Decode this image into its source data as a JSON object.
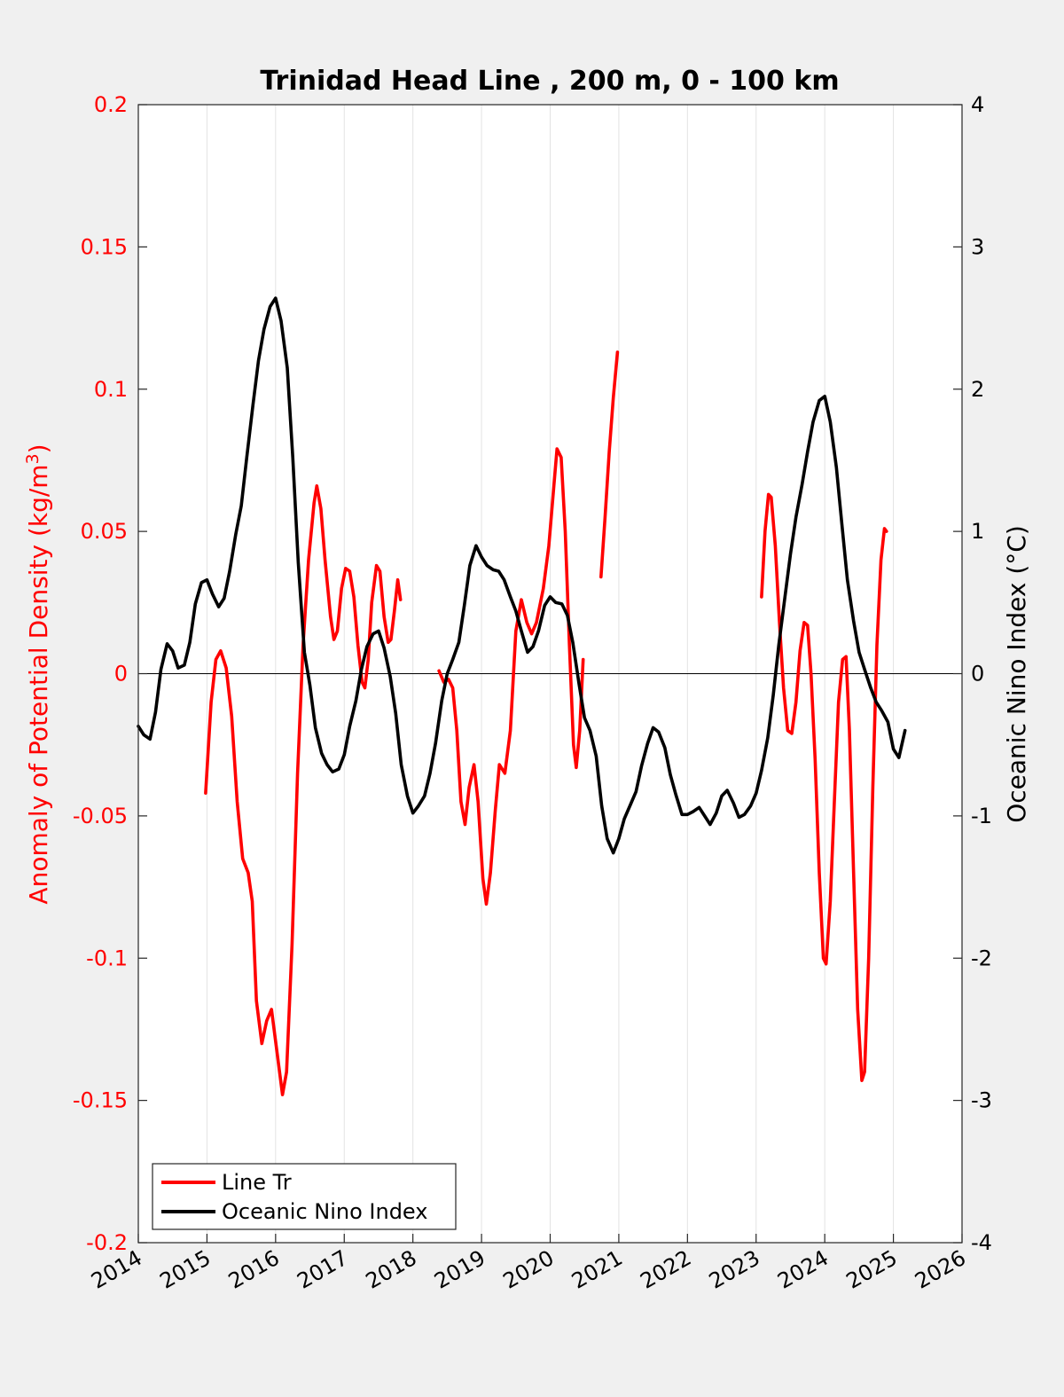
{
  "chart_data": {
    "type": "line",
    "title": "Trinidad Head Line , 200 m, 0 - 100 km",
    "ylabel_left": "Anomaly of Potential Density (kg/m",
    "ylabel_left_sup": "3",
    "ylabel_left_close": ")",
    "ylabel_right": "Oceanic Nino Index (°C)",
    "xlim": [
      2014,
      2026
    ],
    "ylim_left": [
      -0.2,
      0.2
    ],
    "ylim_right": [
      -4,
      4
    ],
    "x_ticks": [
      2014,
      2015,
      2016,
      2017,
      2018,
      2019,
      2020,
      2021,
      2022,
      2023,
      2024,
      2025,
      2026
    ],
    "x_tick_labels": [
      "2014",
      "2015",
      "2016",
      "2017",
      "2018",
      "2019",
      "2020",
      "2021",
      "2022",
      "2023",
      "2024",
      "2025",
      "2026"
    ],
    "y_left_ticks": [
      -0.2,
      -0.15,
      -0.1,
      -0.05,
      0,
      0.05,
      0.1,
      0.15,
      0.2
    ],
    "y_left_tick_labels": [
      "-0.2",
      "-0.15",
      "-0.1",
      "-0.05",
      "0",
      "0.05",
      "0.1",
      "0.15",
      "0.2"
    ],
    "y_right_ticks": [
      -4,
      -3,
      -2,
      -1,
      0,
      1,
      2,
      3,
      4
    ],
    "y_right_tick_labels": [
      "-4",
      "-3",
      "-2",
      "-1",
      "0",
      "1",
      "2",
      "3",
      "4"
    ],
    "grid": "vertical",
    "legend_placement": "bottom-left",
    "colors": {
      "line_tr": "#ff0000",
      "oni": "#000000",
      "axis_left": "#ff0000",
      "axis_right": "#000000",
      "background": "#f0f0f0",
      "plot_bg": "#ffffff"
    },
    "series": [
      {
        "name": "Line Tr",
        "axis": "left",
        "segments": [
          [
            [
              2014.98,
              -0.042
            ],
            [
              2015.06,
              -0.01
            ],
            [
              2015.13,
              0.005
            ],
            [
              2015.2,
              0.008
            ],
            [
              2015.28,
              0.002
            ],
            [
              2015.36,
              -0.015
            ],
            [
              2015.44,
              -0.045
            ],
            [
              2015.52,
              -0.065
            ],
            [
              2015.6,
              -0.07
            ],
            [
              2015.66,
              -0.08
            ],
            [
              2015.72,
              -0.115
            ],
            [
              2015.8,
              -0.13
            ],
            [
              2015.87,
              -0.122
            ],
            [
              2015.94,
              -0.118
            ],
            [
              2016.02,
              -0.133
            ],
            [
              2016.1,
              -0.148
            ],
            [
              2016.16,
              -0.14
            ],
            [
              2016.24,
              -0.095
            ],
            [
              2016.32,
              -0.035
            ],
            [
              2016.4,
              0.01
            ],
            [
              2016.48,
              0.04
            ],
            [
              2016.56,
              0.06
            ],
            [
              2016.6,
              0.066
            ],
            [
              2016.66,
              0.058
            ],
            [
              2016.72,
              0.04
            ],
            [
              2016.8,
              0.02
            ],
            [
              2016.85,
              0.012
            ],
            [
              2016.9,
              0.015
            ],
            [
              2016.96,
              0.03
            ],
            [
              2017.02,
              0.037
            ],
            [
              2017.08,
              0.036
            ],
            [
              2017.14,
              0.027
            ],
            [
              2017.2,
              0.01
            ],
            [
              2017.26,
              -0.003
            ],
            [
              2017.3,
              -0.005
            ],
            [
              2017.35,
              0.005
            ],
            [
              2017.4,
              0.025
            ],
            [
              2017.47,
              0.038
            ],
            [
              2017.52,
              0.036
            ],
            [
              2017.58,
              0.02
            ],
            [
              2017.64,
              0.011
            ],
            [
              2017.68,
              0.012
            ],
            [
              2017.73,
              0.022
            ],
            [
              2017.78,
              0.033
            ],
            [
              2017.82,
              0.026
            ]
          ],
          [
            [
              2018.38,
              0.001
            ],
            [
              2018.45,
              -0.003
            ],
            [
              2018.52,
              -0.002
            ],
            [
              2018.58,
              -0.005
            ],
            [
              2018.64,
              -0.02
            ],
            [
              2018.7,
              -0.045
            ],
            [
              2018.76,
              -0.053
            ],
            [
              2018.82,
              -0.04
            ],
            [
              2018.89,
              -0.032
            ],
            [
              2018.95,
              -0.045
            ],
            [
              2019.02,
              -0.072
            ],
            [
              2019.07,
              -0.081
            ],
            [
              2019.13,
              -0.07
            ],
            [
              2019.2,
              -0.048
            ],
            [
              2019.26,
              -0.032
            ],
            [
              2019.34,
              -0.035
            ],
            [
              2019.42,
              -0.02
            ],
            [
              2019.5,
              0.015
            ],
            [
              2019.58,
              0.026
            ],
            [
              2019.66,
              0.018
            ],
            [
              2019.73,
              0.014
            ],
            [
              2019.8,
              0.018
            ],
            [
              2019.9,
              0.03
            ],
            [
              2019.98,
              0.045
            ],
            [
              2020.05,
              0.065
            ],
            [
              2020.1,
              0.079
            ],
            [
              2020.16,
              0.076
            ],
            [
              2020.22,
              0.05
            ],
            [
              2020.28,
              0.01
            ],
            [
              2020.34,
              -0.025
            ],
            [
              2020.38,
              -0.033
            ],
            [
              2020.43,
              -0.02
            ],
            [
              2020.48,
              0.005
            ]
          ],
          [
            [
              2020.74,
              0.034
            ],
            [
              2020.8,
              0.055
            ],
            [
              2020.86,
              0.078
            ],
            [
              2020.92,
              0.097
            ],
            [
              2020.98,
              0.113
            ]
          ],
          [
            [
              2023.08,
              0.027
            ],
            [
              2023.13,
              0.05
            ],
            [
              2023.18,
              0.063
            ],
            [
              2023.22,
              0.062
            ],
            [
              2023.28,
              0.045
            ],
            [
              2023.34,
              0.018
            ],
            [
              2023.4,
              -0.005
            ],
            [
              2023.46,
              -0.02
            ],
            [
              2023.52,
              -0.021
            ],
            [
              2023.58,
              -0.01
            ],
            [
              2023.64,
              0.008
            ],
            [
              2023.7,
              0.018
            ],
            [
              2023.75,
              0.017
            ],
            [
              2023.8,
              0.0
            ],
            [
              2023.86,
              -0.03
            ],
            [
              2023.92,
              -0.07
            ],
            [
              2023.98,
              -0.1
            ],
            [
              2024.02,
              -0.102
            ],
            [
              2024.08,
              -0.08
            ],
            [
              2024.14,
              -0.045
            ],
            [
              2024.2,
              -0.01
            ],
            [
              2024.26,
              0.005
            ],
            [
              2024.31,
              0.006
            ],
            [
              2024.36,
              -0.02
            ],
            [
              2024.42,
              -0.07
            ],
            [
              2024.48,
              -0.118
            ],
            [
              2024.54,
              -0.143
            ],
            [
              2024.58,
              -0.14
            ],
            [
              2024.64,
              -0.1
            ],
            [
              2024.7,
              -0.04
            ],
            [
              2024.76,
              0.01
            ],
            [
              2024.82,
              0.04
            ],
            [
              2024.87,
              0.051
            ],
            [
              2024.9,
              0.05
            ]
          ]
        ]
      },
      {
        "name": "Oceanic Nino Index",
        "axis": "right",
        "segments": [
          [
            [
              2014.0,
              -0.37
            ],
            [
              2014.08,
              -0.43
            ],
            [
              2014.17,
              -0.46
            ],
            [
              2014.25,
              -0.27
            ],
            [
              2014.33,
              0.03
            ],
            [
              2014.42,
              0.21
            ],
            [
              2014.5,
              0.16
            ],
            [
              2014.58,
              0.04
            ],
            [
              2014.67,
              0.06
            ],
            [
              2014.75,
              0.22
            ],
            [
              2014.83,
              0.49
            ],
            [
              2014.92,
              0.64
            ],
            [
              2015.0,
              0.66
            ],
            [
              2015.08,
              0.56
            ],
            [
              2015.17,
              0.47
            ],
            [
              2015.25,
              0.53
            ],
            [
              2015.33,
              0.72
            ],
            [
              2015.42,
              0.98
            ],
            [
              2015.5,
              1.18
            ],
            [
              2015.58,
              1.52
            ],
            [
              2015.67,
              1.89
            ],
            [
              2015.75,
              2.2
            ],
            [
              2015.83,
              2.42
            ],
            [
              2015.92,
              2.58
            ],
            [
              2016.0,
              2.64
            ],
            [
              2016.08,
              2.48
            ],
            [
              2016.17,
              2.15
            ],
            [
              2016.25,
              1.52
            ],
            [
              2016.33,
              0.78
            ],
            [
              2016.42,
              0.15
            ],
            [
              2016.5,
              -0.08
            ],
            [
              2016.58,
              -0.38
            ],
            [
              2016.67,
              -0.56
            ],
            [
              2016.75,
              -0.64
            ],
            [
              2016.83,
              -0.69
            ],
            [
              2016.92,
              -0.67
            ],
            [
              2017.0,
              -0.57
            ],
            [
              2017.08,
              -0.37
            ],
            [
              2017.17,
              -0.19
            ],
            [
              2017.25,
              0.03
            ],
            [
              2017.33,
              0.19
            ],
            [
              2017.42,
              0.28
            ],
            [
              2017.5,
              0.3
            ],
            [
              2017.58,
              0.18
            ],
            [
              2017.67,
              -0.02
            ],
            [
              2017.75,
              -0.28
            ],
            [
              2017.83,
              -0.64
            ],
            [
              2017.92,
              -0.86
            ],
            [
              2018.0,
              -0.98
            ],
            [
              2018.08,
              -0.93
            ],
            [
              2018.17,
              -0.86
            ],
            [
              2018.25,
              -0.7
            ],
            [
              2018.33,
              -0.49
            ],
            [
              2018.42,
              -0.19
            ],
            [
              2018.5,
              0.0
            ],
            [
              2018.58,
              0.1
            ],
            [
              2018.67,
              0.22
            ],
            [
              2018.75,
              0.48
            ],
            [
              2018.83,
              0.76
            ],
            [
              2018.92,
              0.9
            ],
            [
              2019.0,
              0.82
            ],
            [
              2019.08,
              0.76
            ],
            [
              2019.17,
              0.73
            ],
            [
              2019.25,
              0.72
            ],
            [
              2019.33,
              0.66
            ],
            [
              2019.42,
              0.54
            ],
            [
              2019.5,
              0.44
            ],
            [
              2019.58,
              0.3
            ],
            [
              2019.67,
              0.15
            ],
            [
              2019.75,
              0.19
            ],
            [
              2019.83,
              0.3
            ],
            [
              2019.92,
              0.48
            ],
            [
              2020.0,
              0.54
            ],
            [
              2020.08,
              0.5
            ],
            [
              2020.17,
              0.49
            ],
            [
              2020.25,
              0.41
            ],
            [
              2020.33,
              0.22
            ],
            [
              2020.42,
              -0.07
            ],
            [
              2020.5,
              -0.31
            ],
            [
              2020.58,
              -0.4
            ],
            [
              2020.67,
              -0.58
            ],
            [
              2020.75,
              -0.93
            ],
            [
              2020.83,
              -1.16
            ],
            [
              2020.92,
              -1.26
            ],
            [
              2021.0,
              -1.16
            ],
            [
              2021.08,
              -1.02
            ],
            [
              2021.17,
              -0.92
            ],
            [
              2021.25,
              -0.83
            ],
            [
              2021.33,
              -0.65
            ],
            [
              2021.42,
              -0.49
            ],
            [
              2021.5,
              -0.38
            ],
            [
              2021.58,
              -0.41
            ],
            [
              2021.67,
              -0.52
            ],
            [
              2021.75,
              -0.71
            ],
            [
              2021.83,
              -0.85
            ],
            [
              2021.92,
              -0.99
            ],
            [
              2022.0,
              -0.99
            ],
            [
              2022.08,
              -0.97
            ],
            [
              2022.17,
              -0.94
            ],
            [
              2022.25,
              -1.0
            ],
            [
              2022.33,
              -1.06
            ],
            [
              2022.42,
              -0.98
            ],
            [
              2022.5,
              -0.86
            ],
            [
              2022.58,
              -0.82
            ],
            [
              2022.67,
              -0.91
            ],
            [
              2022.75,
              -1.01
            ],
            [
              2022.83,
              -0.99
            ],
            [
              2022.92,
              -0.93
            ],
            [
              2023.0,
              -0.84
            ],
            [
              2023.08,
              -0.68
            ],
            [
              2023.17,
              -0.45
            ],
            [
              2023.25,
              -0.15
            ],
            [
              2023.33,
              0.2
            ],
            [
              2023.42,
              0.54
            ],
            [
              2023.5,
              0.84
            ],
            [
              2023.58,
              1.1
            ],
            [
              2023.67,
              1.33
            ],
            [
              2023.75,
              1.56
            ],
            [
              2023.83,
              1.77
            ],
            [
              2023.92,
              1.92
            ],
            [
              2024.0,
              1.95
            ],
            [
              2024.08,
              1.77
            ],
            [
              2024.17,
              1.45
            ],
            [
              2024.25,
              1.05
            ],
            [
              2024.33,
              0.66
            ],
            [
              2024.42,
              0.37
            ],
            [
              2024.5,
              0.15
            ],
            [
              2024.58,
              0.03
            ],
            [
              2024.67,
              -0.1
            ],
            [
              2024.75,
              -0.2
            ],
            [
              2024.83,
              -0.26
            ],
            [
              2024.92,
              -0.34
            ],
            [
              2025.0,
              -0.53
            ],
            [
              2025.08,
              -0.59
            ],
            [
              2025.17,
              -0.4
            ]
          ]
        ]
      }
    ]
  }
}
